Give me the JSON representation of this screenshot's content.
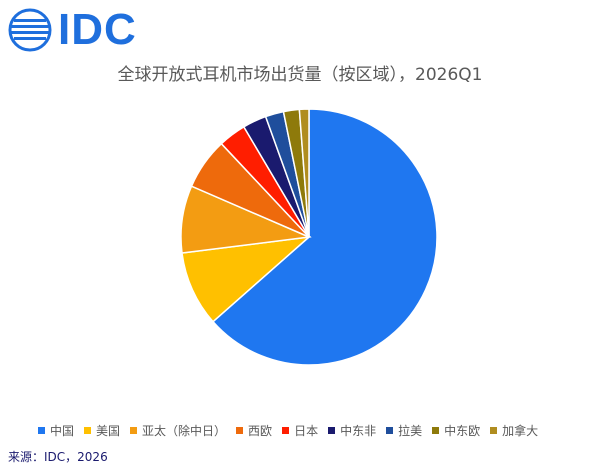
{
  "logo": {
    "text": "IDC",
    "color": "#1F6FDD"
  },
  "chart_data": {
    "type": "pie",
    "title": "全球开放式耳机市场出货量（按区域），2026Q1",
    "categories": [
      "中国",
      "美国",
      "亚太（除中日）",
      "西欧",
      "日本",
      "中东非",
      "拉美",
      "中东欧",
      "加拿大"
    ],
    "values": [
      63.5,
      9.5,
      8.5,
      6.5,
      3.5,
      3.0,
      2.3,
      2.0,
      1.2
    ],
    "unit": "%",
    "colors": [
      "#1F77F0",
      "#FFC000",
      "#F39C12",
      "#EE6A0C",
      "#FF1E00",
      "#1A1A6E",
      "#1F4E9C",
      "#8E7A0B",
      "#B08D20"
    ],
    "start_angle_deg": 0,
    "direction": "clockwise",
    "legend_position": "bottom"
  },
  "source": "来源：IDC，2026"
}
